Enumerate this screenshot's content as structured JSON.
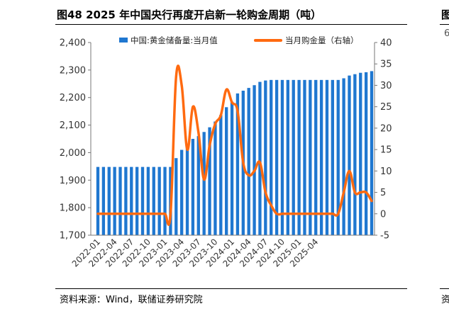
{
  "figure": {
    "title": "图48 2025 年中国央行再度开启新一轮购金周期（吨）",
    "source": "资料来源：Wind，联储证券研究院",
    "right_fragments": {
      "title": "图",
      "mid": "6",
      "foot": "资"
    }
  },
  "colors": {
    "bars": "#1f77d0",
    "line": "#ff6a10"
  },
  "chart_data": {
    "type": "bar",
    "series": [
      {
        "name": "中国:黄金储备量:当月值",
        "type": "bar",
        "axis": "left",
        "values": [
          1948,
          1948,
          1948,
          1948,
          1948,
          1948,
          1948,
          1948,
          1948,
          1948,
          1948,
          1948,
          1948,
          1948,
          1980,
          2010,
          2025,
          2050,
          2060,
          2075,
          2092,
          2113,
          2137,
          2165,
          2185,
          2215,
          2225,
          2235,
          2245,
          2257,
          2262,
          2264,
          2264,
          2264,
          2264,
          2264,
          2264,
          2264,
          2264,
          2264,
          2264,
          2264,
          2264,
          2264,
          2270,
          2280,
          2285,
          2290,
          2292,
          2296
        ]
      },
      {
        "name": "当月购金量（右轴）",
        "type": "line",
        "axis": "right",
        "values": [
          0,
          0,
          0,
          0,
          0,
          0,
          0,
          0,
          0,
          0,
          0,
          0,
          0,
          0,
          32,
          30,
          15,
          25,
          19,
          8,
          16,
          21,
          23,
          29,
          26,
          24,
          12,
          9,
          10,
          12,
          5,
          2,
          0,
          0,
          0,
          0,
          0,
          0,
          0,
          0,
          0,
          0,
          0,
          0,
          5,
          10,
          5,
          5,
          5,
          3
        ]
      }
    ],
    "left_axis": {
      "min": 1700,
      "max": 2400,
      "ticks": [
        "1,700",
        "1,800",
        "1,900",
        "2,000",
        "2,100",
        "2,200",
        "2,300",
        "2,400"
      ]
    },
    "right_axis": {
      "min": -5,
      "max": 40,
      "ticks": [
        "-5",
        "0",
        "5",
        "10",
        "15",
        "20",
        "25",
        "30",
        "35",
        "40"
      ]
    },
    "x_tick_labels": [
      "2022-01",
      "2022-04",
      "2022-07",
      "2022-10",
      "2023-01",
      "2023-04",
      "2023-07",
      "2023-10",
      "2024-01",
      "2024-04",
      "2024-07",
      "2024-10",
      "2025-01",
      "2025-04"
    ],
    "legend_position": "top",
    "grid": false
  }
}
